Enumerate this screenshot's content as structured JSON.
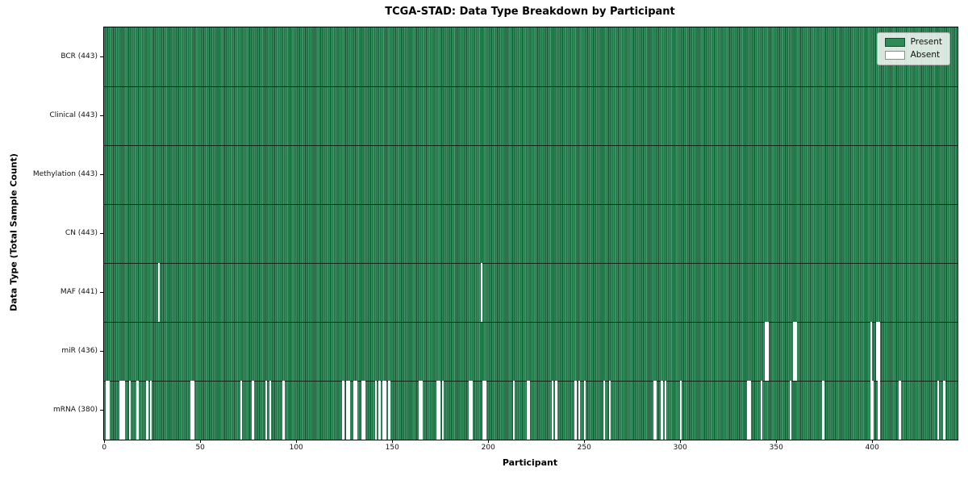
{
  "figure": {
    "title": "TCGA-STAD: Data Type Breakdown by Participant"
  },
  "axes": {
    "x_label": "Participant",
    "y_label": "Data Type (Total Sample Count)"
  },
  "legend": {
    "items": [
      {
        "label": "Present",
        "color": "#2e8b57"
      },
      {
        "label": "Absent",
        "color": "#ffffff"
      }
    ]
  },
  "chart_data": {
    "type": "heatmap",
    "title": "TCGA-STAD: Data Type Breakdown by Participant",
    "xlabel": "Participant",
    "ylabel": "Data Type (Total Sample Count)",
    "legend_position": "upper right",
    "grid": false,
    "n_participants": 443,
    "x_range": [
      -0.5,
      444
    ],
    "x_ticks": [
      0,
      50,
      100,
      150,
      200,
      250,
      300,
      350,
      400
    ],
    "colors": {
      "present": "#2e8b57",
      "absent": "#ffffff",
      "bar_edge": "#10281a"
    },
    "rows": [
      {
        "name": "BCR",
        "label": "BCR (443)",
        "present_count": 443,
        "absent_participants": []
      },
      {
        "name": "Clinical",
        "label": "Clinical (443)",
        "present_count": 443,
        "absent_participants": []
      },
      {
        "name": "Methylation",
        "label": "Methylation (443)",
        "present_count": 443,
        "absent_participants": []
      },
      {
        "name": "CN",
        "label": "CN (443)",
        "present_count": 443,
        "absent_participants": []
      },
      {
        "name": "MAF",
        "label": "MAF (441)",
        "present_count": 441,
        "absent_participants": [
          28,
          196
        ]
      },
      {
        "name": "miR",
        "label": "miR (436)",
        "present_count": 436,
        "absent_participants": [
          344,
          345,
          359,
          360,
          399,
          402,
          403
        ]
      },
      {
        "name": "mRNA",
        "label": "mRNA (380)",
        "present_count": 380,
        "absent_participants": [
          1,
          2,
          8,
          9,
          10,
          13,
          17,
          22,
          24,
          45,
          46,
          71,
          77,
          84,
          86,
          93,
          124,
          126,
          127,
          130,
          131,
          134,
          135,
          141,
          143,
          145,
          146,
          148,
          164,
          165,
          173,
          174,
          176,
          190,
          191,
          197,
          198,
          213,
          220,
          221,
          233,
          235,
          245,
          247,
          250,
          260,
          263,
          286,
          287,
          290,
          292,
          300,
          335,
          336,
          342,
          357,
          374,
          399,
          400,
          403,
          414,
          434,
          437
        ]
      }
    ]
  }
}
